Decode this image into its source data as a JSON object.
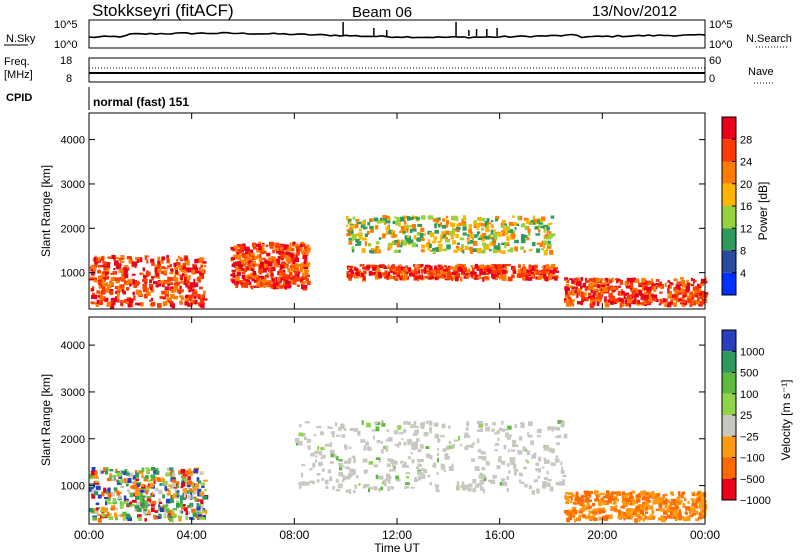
{
  "header": {
    "station": "Stokkseyri (fitACF)",
    "beam": "Beam 06",
    "date": "13/Nov/2012"
  },
  "noise_panel": {
    "left_label": "N.Sky",
    "right_label": "N.Search",
    "left_ticks": [
      "10^5",
      "10^0"
    ],
    "right_ticks": [
      "10^5",
      "10^0"
    ]
  },
  "freq_panel": {
    "left_label_1": "Freq.",
    "left_label_2": "[MHz]",
    "left_ticks": [
      "18",
      "8"
    ],
    "right_label": "Nave",
    "right_ticks": [
      "60",
      "0"
    ]
  },
  "cpid_panel": {
    "label": "CPID",
    "value": "normal (fast) 151"
  },
  "chart_data": [
    {
      "type": "heatmap",
      "ylabel": "Slant Range [km]",
      "xlabel": "",
      "y_ticks": [
        1000,
        2000,
        3000,
        4000
      ],
      "ylim": [
        180,
        4600
      ],
      "colorbar": {
        "label": "Power [dB]",
        "ticks": [
          "28",
          "24",
          "20",
          "16",
          "12",
          "8",
          "4"
        ],
        "colors": [
          "#e8001c",
          "#ff3a00",
          "#ff7c00",
          "#ffb400",
          "#96d23c",
          "#2e9a5c",
          "#2a4aa0",
          "#0030ff"
        ]
      },
      "summary_regions": [
        {
          "t_start": 0.0,
          "t_end": 4.5,
          "range_start": 300,
          "range_end": 1400,
          "level": "high"
        },
        {
          "t_start": 5.5,
          "t_end": 8.5,
          "range_start": 700,
          "range_end": 1700,
          "level": "high"
        },
        {
          "t_start": 10.0,
          "t_end": 18.2,
          "range_start": 900,
          "range_end": 1200,
          "level": "high"
        },
        {
          "t_start": 10.0,
          "t_end": 18.0,
          "range_start": 1500,
          "range_end": 2300,
          "level": "medium"
        },
        {
          "t_start": 18.5,
          "t_end": 24.0,
          "range_start": 300,
          "range_end": 900,
          "level": "high"
        }
      ]
    },
    {
      "type": "heatmap",
      "ylabel": "Slant Range [km]",
      "xlabel": "Time UT",
      "x_ticks": [
        "00:00",
        "04:00",
        "08:00",
        "12:00",
        "16:00",
        "20:00",
        "00:00"
      ],
      "y_ticks": [
        1000,
        2000,
        3000,
        4000
      ],
      "ylim": [
        180,
        4600
      ],
      "colorbar": {
        "label": "Velocity [m s⁻¹]",
        "ticks": [
          "1000",
          "500",
          "100",
          "25",
          "−25",
          "−100",
          "−500",
          "−1000"
        ],
        "colors": [
          "#2a3fbf",
          "#2e9a5c",
          "#5dbb3c",
          "#8fd44a",
          "#c8c8c0",
          "#ff9a10",
          "#ff6a00",
          "#e8001c"
        ]
      },
      "summary_regions": [
        {
          "t_start": 0.0,
          "t_end": 4.5,
          "range_start": 300,
          "range_end": 1400,
          "level": "mixed"
        },
        {
          "t_start": 8.0,
          "t_end": 18.5,
          "range_start": 900,
          "range_end": 2400,
          "level": "near-zero"
        },
        {
          "t_start": 18.5,
          "t_end": 24.0,
          "range_start": 300,
          "range_end": 900,
          "level": "negative"
        }
      ]
    }
  ]
}
